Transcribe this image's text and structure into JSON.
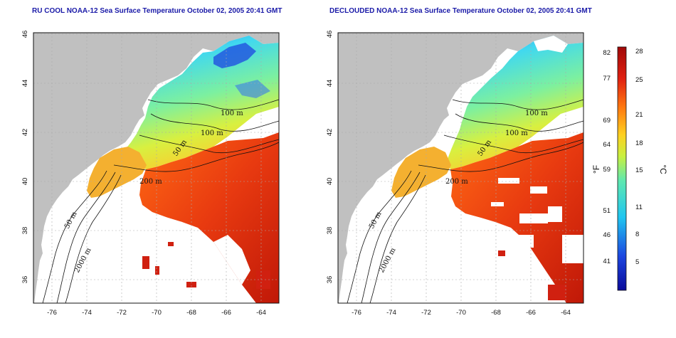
{
  "titles": {
    "left": "RU COOL NOAA-12 Sea Surface Temperature October 02, 2005 20:41 GMT",
    "right": "DECLOUDED NOAA-12 Sea Surface Temperature October 02, 2005 20:41 GMT"
  },
  "axes": {
    "lon_ticks": [
      "-76",
      "-74",
      "-72",
      "-70",
      "-68",
      "-66",
      "-64"
    ],
    "lat_ticks": [
      "46",
      "44",
      "42",
      "40",
      "38",
      "36"
    ]
  },
  "contour_labels": [
    "100 m",
    "100 m",
    "50 m",
    "200 m",
    "50 m",
    "2000 m"
  ],
  "colorbar": {
    "fahrenheit_ticks": [
      "82",
      "77",
      "69",
      "64",
      "59",
      "51",
      "46",
      "41"
    ],
    "celsius_ticks": [
      "28",
      "25",
      "21",
      "18",
      "15",
      "11",
      "8",
      "5"
    ],
    "fahrenheit_unit": "°F",
    "celsius_unit": "°C"
  },
  "colors": {
    "land": "#c0c0c0",
    "cold": "#1a33c8",
    "warm": "#d01808",
    "title": "#1a1aa8"
  }
}
